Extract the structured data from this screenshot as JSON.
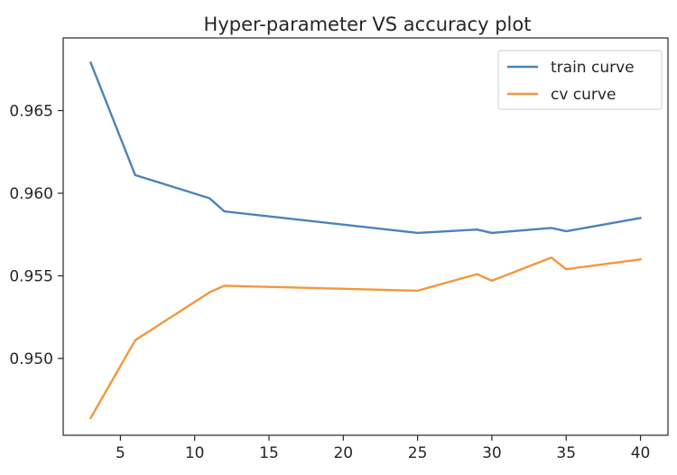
{
  "chart_data": {
    "type": "line",
    "title": "Hyper-parameter VS accuracy plot",
    "xlabel": "",
    "ylabel": "",
    "xlim": [
      1.15,
      41.85
    ],
    "ylim": [
      0.94535,
      0.9694
    ],
    "xticks": [
      5,
      10,
      15,
      20,
      25,
      30,
      35,
      40
    ],
    "yticks": [
      0.95,
      0.955,
      0.96,
      0.965
    ],
    "xtick_labels": [
      "5",
      "10",
      "15",
      "20",
      "25",
      "30",
      "35",
      "40"
    ],
    "ytick_labels": [
      "0.950",
      "0.955",
      "0.960",
      "0.965"
    ],
    "grid": false,
    "legend_position": "top-right",
    "x": [
      3,
      6,
      11,
      12,
      25,
      29,
      30,
      34,
      35,
      40
    ],
    "series": [
      {
        "name": "train curve",
        "color": "#4c82b9",
        "values": [
          0.9679,
          0.9611,
          0.9597,
          0.9589,
          0.9576,
          0.9578,
          0.9576,
          0.9579,
          0.9577,
          0.9585
        ]
      },
      {
        "name": "cv curve",
        "color": "#f5963c",
        "values": [
          0.9464,
          0.9511,
          0.954,
          0.9544,
          0.9541,
          0.9551,
          0.9547,
          0.9561,
          0.9554,
          0.956
        ]
      }
    ]
  }
}
